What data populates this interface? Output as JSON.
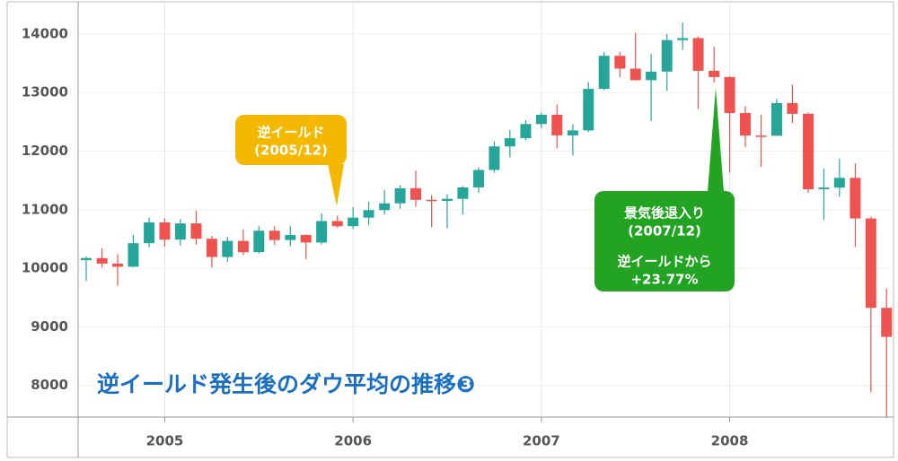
{
  "chart_data": {
    "type": "candlestick",
    "title": "逆イールド発生後のダウ平均の推移❸",
    "x": [
      2004.583,
      2004.667,
      2004.75,
      2004.833,
      2004.917,
      2005.0,
      2005.083,
      2005.167,
      2005.25,
      2005.333,
      2005.417,
      2005.5,
      2005.583,
      2005.667,
      2005.75,
      2005.833,
      2005.917,
      2006.0,
      2006.083,
      2006.167,
      2006.25,
      2006.333,
      2006.417,
      2006.5,
      2006.583,
      2006.667,
      2006.75,
      2006.833,
      2006.917,
      2007.0,
      2007.083,
      2007.167,
      2007.25,
      2007.333,
      2007.417,
      2007.5,
      2007.583,
      2007.667,
      2007.75,
      2007.833,
      2007.917,
      2008.0,
      2008.083,
      2008.167,
      2008.25,
      2008.333,
      2008.417,
      2008.5,
      2008.583,
      2008.667,
      2008.75,
      2008.833
    ],
    "open": [
      10139,
      10174,
      10080,
      10027,
      10428,
      10783,
      10490,
      10766,
      10504,
      10193,
      10467,
      10275,
      10641,
      10482,
      10569,
      10440,
      10806,
      10718,
      10865,
      10993,
      11109,
      11367,
      11168,
      11150,
      11186,
      11381,
      11679,
      12081,
      12221,
      12463,
      12622,
      12269,
      12354,
      13063,
      13628,
      13409,
      13212,
      13358,
      13896,
      13930,
      13372,
      13265,
      12650,
      12266,
      12263,
      12820,
      12638,
      11350,
      11378,
      11544,
      10851,
      9325
    ],
    "high": [
      10200,
      10343,
      10239,
      10572,
      10868,
      10855,
      10842,
      10984,
      10552,
      10541,
      10665,
      10720,
      10719,
      10719,
      10580,
      10940,
      10901,
      11043,
      11137,
      11334,
      11419,
      11670,
      11250,
      11260,
      11404,
      11725,
      12167,
      12361,
      12529,
      12660,
      12796,
      12458,
      13178,
      13692,
      13692,
      14022,
      13657,
      14000,
      14198,
      13956,
      13779,
      13279,
      12767,
      12622,
      12891,
      13136,
      12657,
      11698,
      11867,
      11790,
      10883,
      9654
    ],
    "low": [
      9785,
      10013,
      9708,
      10020,
      10360,
      10368,
      10389,
      10404,
      10013,
      10109,
      10226,
      10253,
      10397,
      10378,
      10156,
      10406,
      10692,
      10667,
      10740,
      10920,
      11018,
      11051,
      10699,
      10683,
      10920,
      11290,
      11630,
      11895,
      12190,
      12391,
      12050,
      11926,
      12326,
      13042,
      13266,
      13204,
      12518,
      13028,
      13731,
      12724,
      13166,
      11634,
      12069,
      11731,
      12263,
      12480,
      11288,
      10827,
      11221,
      10365,
      7882,
      7449
    ],
    "close": [
      10174,
      10080,
      10027,
      10428,
      10783,
      10490,
      10766,
      10504,
      10193,
      10467,
      10275,
      10641,
      10482,
      10569,
      10440,
      10806,
      10718,
      10865,
      10993,
      11109,
      11367,
      11168,
      11150,
      11186,
      11381,
      11679,
      12081,
      12221,
      12463,
      12622,
      12269,
      12354,
      13063,
      13628,
      13409,
      13212,
      13358,
      13896,
      13930,
      13372,
      13265,
      12650,
      12266,
      12263,
      12820,
      12638,
      11350,
      11378,
      11544,
      10851,
      9325,
      8829
    ],
    "up_color": "#26a69a",
    "down_color": "#ef5350",
    "xlim": [
      2004.54,
      2008.87
    ],
    "xticks": [
      2005,
      2006,
      2007,
      2008
    ],
    "ylim": [
      7460,
      14550
    ],
    "yticks": [
      8000,
      9000,
      10000,
      11000,
      12000,
      13000,
      14000
    ],
    "grid": true,
    "annotations": [
      {
        "lines": [
          "逆イールド",
          "(2005/12)"
        ],
        "color": "#f5b800"
      },
      {
        "lines": [
          "景気後退入り",
          "(2007/12)",
          "逆イールドから",
          "+23.77%"
        ],
        "color": "#22a322"
      }
    ]
  }
}
